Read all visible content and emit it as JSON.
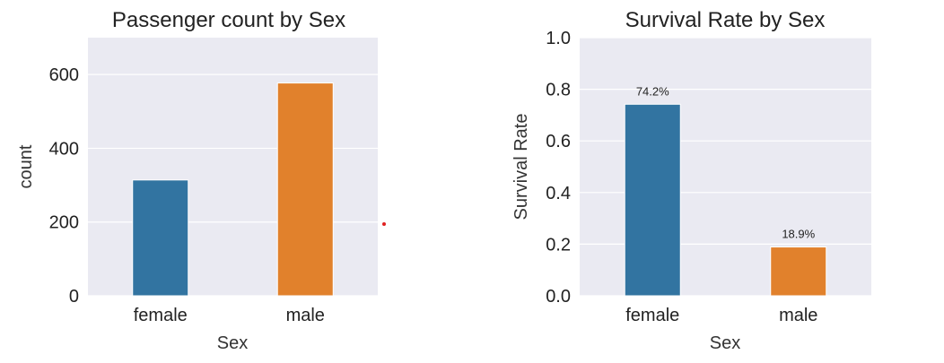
{
  "chart_data": [
    {
      "type": "bar",
      "title": "Passenger count by Sex",
      "xlabel": "Sex",
      "ylabel": "count",
      "categories": [
        "female",
        "male"
      ],
      "values": [
        314,
        577
      ],
      "colors": [
        "#3274a1",
        "#e1812c"
      ],
      "ylim": [
        0,
        700
      ],
      "yticks": [
        0,
        200,
        400,
        600
      ],
      "ytick_labels": [
        "0",
        "200",
        "400",
        "600"
      ],
      "grid": true
    },
    {
      "type": "bar",
      "title": "Survival Rate by Sex",
      "xlabel": "Sex",
      "ylabel": "Survival Rate",
      "categories": [
        "female",
        "male"
      ],
      "values": [
        0.742,
        0.189
      ],
      "value_labels": [
        "74.2%",
        "18.9%"
      ],
      "colors": [
        "#3274a1",
        "#e1812c"
      ],
      "ylim": [
        0,
        1.0
      ],
      "yticks": [
        0.0,
        0.2,
        0.4,
        0.6,
        0.8,
        1.0
      ],
      "ytick_labels": [
        "0.0",
        "0.2",
        "0.4",
        "0.6",
        "0.8",
        "1.0"
      ],
      "grid": true
    }
  ]
}
